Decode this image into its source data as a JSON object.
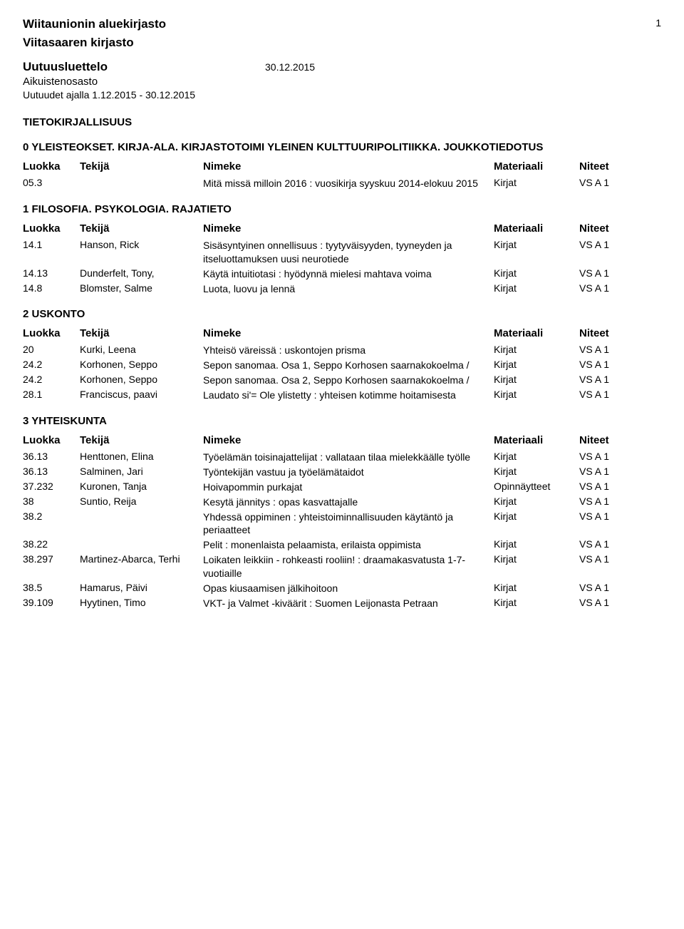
{
  "header": {
    "org_title": "Wiitaunionin aluekirjasto",
    "page_number": "1",
    "library_name": "Viitasaaren kirjasto",
    "list_title": "Uutuusluettelo",
    "list_date": "30.12.2015",
    "sub_title": "Aikuistenosasto",
    "date_range": "Uutuudet ajalla 1.12.2015 - 30.12.2015"
  },
  "major_section": "TIETOKIRJALLISUUS",
  "columns": {
    "c1": "Luokka",
    "c2": "Tekijä",
    "c3": "Nimeke",
    "c4": "Materiaali",
    "c5": "Niteet"
  },
  "sections": [
    {
      "title": "0 YLEISTEOKSET. KIRJA-ALA. KIRJASTOTOIMI YLEINEN KULTTUURIPOLITIIKKA. JOUKKOTIEDOTUS",
      "entries": [
        {
          "luokka": "05.3",
          "tekija": "",
          "nimeke": "Mitä missä milloin 2016 : vuosikirja syyskuu 2014-elokuu 2015",
          "materiaali": "Kirjat",
          "niteet": "VS A 1"
        }
      ]
    },
    {
      "title": "1 FILOSOFIA. PSYKOLOGIA. RAJATIETO",
      "entries": [
        {
          "luokka": "14.1",
          "tekija": "Hanson, Rick",
          "nimeke": "Sisäsyntyinen onnellisuus : tyytyväisyyden, tyyneyden ja itseluottamuksen uusi neurotiede",
          "materiaali": "Kirjat",
          "niteet": "VS A 1"
        },
        {
          "luokka": "14.13",
          "tekija": "Dunderfelt, Tony,",
          "nimeke": "Käytä intuitiotasi : hyödynnä mielesi mahtava voima",
          "materiaali": "Kirjat",
          "niteet": "VS A 1"
        },
        {
          "luokka": "14.8",
          "tekija": "Blomster, Salme",
          "nimeke": "Luota, luovu ja lennä",
          "materiaali": "Kirjat",
          "niteet": "VS A 1"
        }
      ]
    },
    {
      "title": "2 USKONTO",
      "entries": [
        {
          "luokka": "20",
          "tekija": "Kurki, Leena",
          "nimeke": "Yhteisö väreissä : uskontojen prisma",
          "materiaali": "Kirjat",
          "niteet": "VS A 1"
        },
        {
          "luokka": "24.2",
          "tekija": "Korhonen, Seppo",
          "nimeke": "Sepon sanomaa. Osa 1, Seppo Korhosen saarnakokoelma /",
          "materiaali": "Kirjat",
          "niteet": "VS A 1"
        },
        {
          "luokka": "24.2",
          "tekija": "Korhonen, Seppo",
          "nimeke": "Sepon sanomaa. Osa 2, Seppo Korhosen saarnakokoelma /",
          "materiaali": "Kirjat",
          "niteet": "VS A 1"
        },
        {
          "luokka": "28.1",
          "tekija": "Franciscus, paavi",
          "nimeke": "Laudato si'= Ole ylistetty : yhteisen kotimme hoitamisesta",
          "materiaali": "Kirjat",
          "niteet": "VS A 1"
        }
      ]
    },
    {
      "title": "3 YHTEISKUNTA",
      "entries": [
        {
          "luokka": "36.13",
          "tekija": "Henttonen, Elina",
          "nimeke": "Työelämän toisinajattelijat : vallataan tilaa mielekkäälle työlle",
          "materiaali": "Kirjat",
          "niteet": "VS A 1"
        },
        {
          "luokka": "36.13",
          "tekija": "Salminen, Jari",
          "nimeke": "Työntekijän vastuu ja työelämätaidot",
          "materiaali": "Kirjat",
          "niteet": "VS A 1"
        },
        {
          "luokka": "37.232",
          "tekija": "Kuronen, Tanja",
          "nimeke": "Hoivapommin purkajat",
          "materiaali": "Opinnäytteet",
          "niteet": "VS A 1"
        },
        {
          "luokka": "38",
          "tekija": "Suntio, Reija",
          "nimeke": "Kesytä jännitys : opas kasvattajalle",
          "materiaali": "Kirjat",
          "niteet": "VS A 1"
        },
        {
          "luokka": "38.2",
          "tekija": "",
          "nimeke": "Yhdessä oppiminen : yhteistoiminnallisuuden käytäntö ja periaatteet",
          "materiaali": "Kirjat",
          "niteet": "VS A 1"
        },
        {
          "luokka": "38.22",
          "tekija": "",
          "nimeke": "Pelit : monenlaista pelaamista, erilaista oppimista",
          "materiaali": "Kirjat",
          "niteet": "VS A 1"
        },
        {
          "luokka": "38.297",
          "tekija": "Martinez-Abarca, Terhi",
          "nimeke": "Loikaten leikkiin - rohkeasti rooliin! : draamakasvatusta 1-7-vuotiaille",
          "materiaali": "Kirjat",
          "niteet": "VS A 1"
        },
        {
          "luokka": "38.5",
          "tekija": "Hamarus, Päivi",
          "nimeke": "Opas kiusaamisen jälkihoitoon",
          "materiaali": "Kirjat",
          "niteet": "VS A 1"
        },
        {
          "luokka": "39.109",
          "tekija": "Hyytinen, Timo",
          "nimeke": "VKT- ja Valmet -kiväärit : Suomen Leijonasta Petraan",
          "materiaali": "Kirjat",
          "niteet": "VS A 1"
        }
      ]
    }
  ]
}
